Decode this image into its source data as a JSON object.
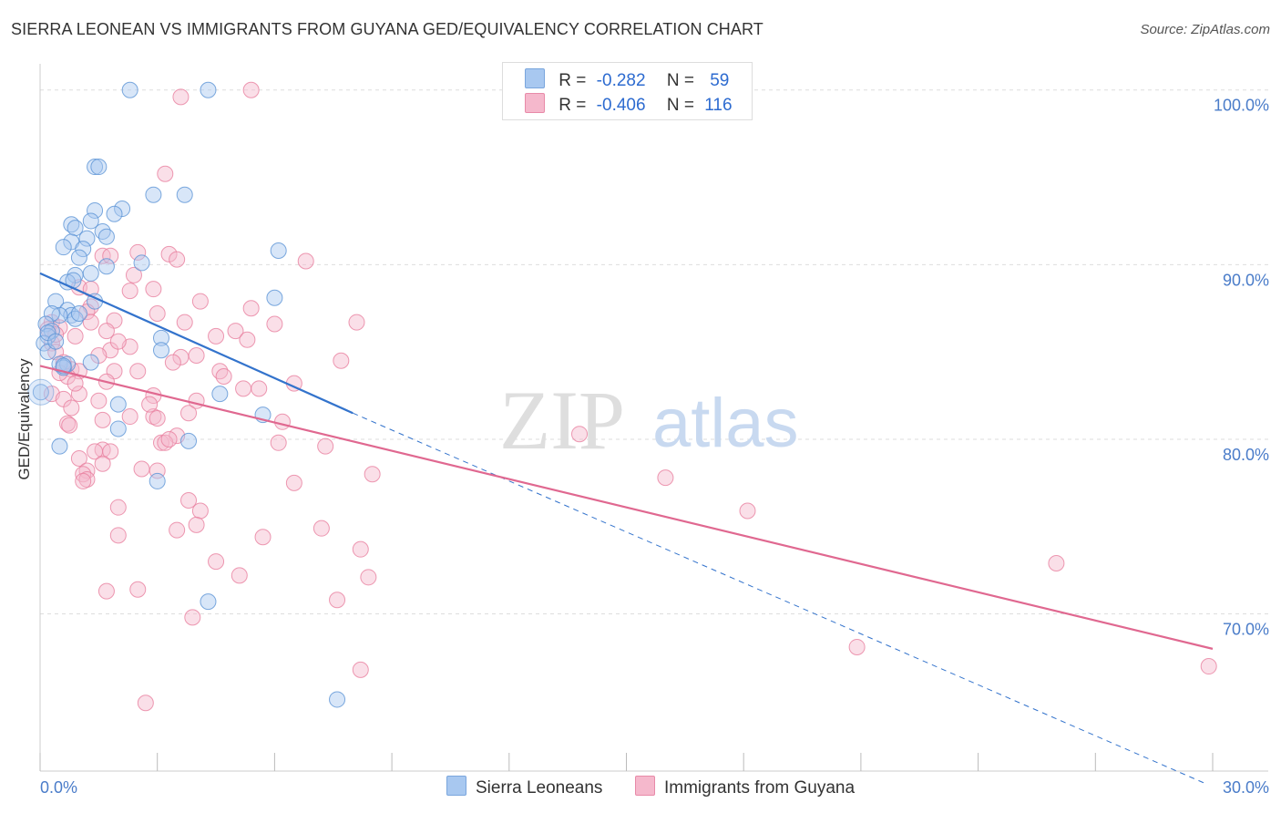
{
  "title": "SIERRA LEONEAN VS IMMIGRANTS FROM GUYANA GED/EQUIVALENCY CORRELATION CHART",
  "source": "Source: ZipAtlas.com",
  "watermark": {
    "zip": "ZIP",
    "atlas": "atlas"
  },
  "legend": {
    "r_label": "R =",
    "n_label": "N =",
    "rows": [
      {
        "r": "-0.282",
        "n": "59",
        "color": "#a8c8f0"
      },
      {
        "r": "-0.406",
        "n": "116",
        "color": "#f5b8cc"
      }
    ]
  },
  "bottom_legend": [
    {
      "label": "Sierra Leoneans",
      "color": "#a8c8f0"
    },
    {
      "label": "Immigrants from Guyana",
      "color": "#f5b8cc"
    }
  ],
  "colors": {
    "blue_point": "#5b93d6",
    "blue_fill": "#a8c8f0",
    "blue_line": "#3373cc",
    "pink_point": "#e8809f",
    "pink_fill": "#f5b8cc",
    "pink_line": "#e06890",
    "axis_text": "#4a7cc9"
  },
  "chart_data": {
    "type": "scatter",
    "title": "SIERRA LEONEAN VS IMMIGRANTS FROM GUYANA GED/EQUIVALENCY CORRELATION CHART",
    "xlabel": "",
    "ylabel": "GED/Equivalency",
    "xlim": [
      0,
      30
    ],
    "ylim": [
      61,
      101.5
    ],
    "x_ticks": [
      "0.0%",
      "30.0%"
    ],
    "y_ticks": [
      {
        "value": 100,
        "label": "100.0%"
      },
      {
        "value": 90,
        "label": "90.0%"
      },
      {
        "value": 80,
        "label": "80.0%"
      },
      {
        "value": 70,
        "label": "70.0%"
      }
    ],
    "grid": true,
    "legend_position": "top-center",
    "series": [
      {
        "name": "Sierra Leoneans",
        "r": -0.282,
        "n": 59,
        "trend": {
          "x0": 0,
          "y0": 89.5,
          "x1": 8.0,
          "y1": 81.5,
          "dashed_to_x": 29.8,
          "dashed_to_y": 60.3
        },
        "points": [
          [
            2.3,
            100
          ],
          [
            4.3,
            100
          ],
          [
            1.4,
            95.6
          ],
          [
            1.5,
            95.6
          ],
          [
            2.9,
            94
          ],
          [
            3.7,
            94
          ],
          [
            2.1,
            93.2
          ],
          [
            1.4,
            93.1
          ],
          [
            1.9,
            92.9
          ],
          [
            1.3,
            92.5
          ],
          [
            0.8,
            92.3
          ],
          [
            0.9,
            92.1
          ],
          [
            1.6,
            91.9
          ],
          [
            1.7,
            91.6
          ],
          [
            1.2,
            91.5
          ],
          [
            0.8,
            91.3
          ],
          [
            0.6,
            91
          ],
          [
            1.1,
            90.9
          ],
          [
            1.0,
            90.4
          ],
          [
            6.1,
            90.8
          ],
          [
            2.6,
            90.1
          ],
          [
            1.7,
            89.9
          ],
          [
            1.3,
            89.5
          ],
          [
            0.9,
            89.4
          ],
          [
            0.7,
            89
          ],
          [
            0.85,
            89.1
          ],
          [
            6.0,
            88.1
          ],
          [
            1.4,
            87.9
          ],
          [
            0.4,
            87.9
          ],
          [
            0.7,
            87.4
          ],
          [
            0.8,
            87.1
          ],
          [
            0.5,
            87.1
          ],
          [
            0.3,
            87.2
          ],
          [
            0.15,
            86.6
          ],
          [
            0.3,
            86.2
          ],
          [
            0.2,
            85.9
          ],
          [
            3.1,
            85.8
          ],
          [
            0.1,
            85.5
          ],
          [
            0.2,
            85
          ],
          [
            3.1,
            85.1
          ],
          [
            1.3,
            84.4
          ],
          [
            0.5,
            84.3
          ],
          [
            0.7,
            84.3
          ],
          [
            0.6,
            84.1
          ],
          [
            0.6,
            84.2
          ],
          [
            4.6,
            82.6
          ],
          [
            2.0,
            82
          ],
          [
            0.02,
            82.7
          ],
          [
            5.7,
            81.4
          ],
          [
            2.0,
            80.6
          ],
          [
            3.8,
            79.9
          ],
          [
            0.5,
            79.6
          ],
          [
            3.0,
            77.6
          ],
          [
            4.3,
            70.7
          ],
          [
            7.6,
            65.1
          ],
          [
            0.9,
            86.9
          ],
          [
            0.2,
            86.1
          ],
          [
            1.0,
            87.2
          ],
          [
            0.4,
            85.6
          ]
        ]
      },
      {
        "name": "Immigrants from Guyana",
        "r": -0.406,
        "n": 116,
        "trend": {
          "x0": 0,
          "y0": 84.2,
          "x1": 30,
          "y1": 68.0
        },
        "points": [
          [
            5.4,
            100
          ],
          [
            3.6,
            99.6
          ],
          [
            3.2,
            95.2
          ],
          [
            1.6,
            90.5
          ],
          [
            2.5,
            90.7
          ],
          [
            1.8,
            90.5
          ],
          [
            3.3,
            90.6
          ],
          [
            3.5,
            90.3
          ],
          [
            6.8,
            90.2
          ],
          [
            2.4,
            89.4
          ],
          [
            1.0,
            88.7
          ],
          [
            1.3,
            88.6
          ],
          [
            2.9,
            88.6
          ],
          [
            2.3,
            88.5
          ],
          [
            4.1,
            87.9
          ],
          [
            1.3,
            87.6
          ],
          [
            1.2,
            87.3
          ],
          [
            5.4,
            87.5
          ],
          [
            3.0,
            87.2
          ],
          [
            1.9,
            86.8
          ],
          [
            1.3,
            86.7
          ],
          [
            3.7,
            86.7
          ],
          [
            6.0,
            86.6
          ],
          [
            8.1,
            86.7
          ],
          [
            0.3,
            86.7
          ],
          [
            1.7,
            86.2
          ],
          [
            0.5,
            86.4
          ],
          [
            0.2,
            86.3
          ],
          [
            4.5,
            85.9
          ],
          [
            5.0,
            86.2
          ],
          [
            0.9,
            85.9
          ],
          [
            5.3,
            85.7
          ],
          [
            0.3,
            85.5
          ],
          [
            2.3,
            85.3
          ],
          [
            0.4,
            85
          ],
          [
            1.8,
            85.1
          ],
          [
            3.6,
            84.7
          ],
          [
            4.0,
            84.8
          ],
          [
            3.4,
            84.4
          ],
          [
            7.7,
            84.5
          ],
          [
            0.8,
            84
          ],
          [
            0.6,
            84.4
          ],
          [
            1.0,
            83.9
          ],
          [
            1.9,
            83.9
          ],
          [
            2.5,
            83.9
          ],
          [
            4.6,
            83.9
          ],
          [
            4.7,
            83.6
          ],
          [
            0.7,
            83.6
          ],
          [
            0.5,
            83.8
          ],
          [
            1.7,
            83.3
          ],
          [
            6.5,
            83.2
          ],
          [
            5.2,
            82.9
          ],
          [
            5.6,
            82.9
          ],
          [
            0.3,
            82.6
          ],
          [
            1.0,
            82.6
          ],
          [
            2.9,
            82.5
          ],
          [
            0.6,
            82.3
          ],
          [
            1.5,
            82.2
          ],
          [
            4.0,
            82.2
          ],
          [
            0.8,
            81.8
          ],
          [
            3.8,
            81.5
          ],
          [
            2.3,
            81.3
          ],
          [
            2.9,
            81.3
          ],
          [
            1.6,
            81.1
          ],
          [
            3.0,
            81.2
          ],
          [
            6.2,
            81
          ],
          [
            0.7,
            80.9
          ],
          [
            0.75,
            80.8
          ],
          [
            13.8,
            80.3
          ],
          [
            3.5,
            80.2
          ],
          [
            3.1,
            79.8
          ],
          [
            3.2,
            79.8
          ],
          [
            6.1,
            79.8
          ],
          [
            7.3,
            79.6
          ],
          [
            1.6,
            79.4
          ],
          [
            1.4,
            79.3
          ],
          [
            1.8,
            79.3
          ],
          [
            1.0,
            78.9
          ],
          [
            1.6,
            78.6
          ],
          [
            2.6,
            78.3
          ],
          [
            3.0,
            78.2
          ],
          [
            1.2,
            78.2
          ],
          [
            1.1,
            78
          ],
          [
            8.5,
            78
          ],
          [
            1.2,
            77.7
          ],
          [
            1.1,
            77.6
          ],
          [
            6.5,
            77.5
          ],
          [
            16.0,
            77.8
          ],
          [
            2.0,
            76.1
          ],
          [
            3.8,
            76.5
          ],
          [
            4.1,
            75.9
          ],
          [
            18.1,
            75.9
          ],
          [
            7.2,
            74.9
          ],
          [
            3.5,
            74.8
          ],
          [
            4.0,
            75.1
          ],
          [
            5.7,
            74.4
          ],
          [
            2.0,
            74.5
          ],
          [
            8.2,
            73.7
          ],
          [
            4.5,
            73
          ],
          [
            26.0,
            72.9
          ],
          [
            5.1,
            72.2
          ],
          [
            8.4,
            72.1
          ],
          [
            2.5,
            71.4
          ],
          [
            1.7,
            71.3
          ],
          [
            7.6,
            70.8
          ],
          [
            3.9,
            69.8
          ],
          [
            20.9,
            68.1
          ],
          [
            8.2,
            66.8
          ],
          [
            29.9,
            67
          ],
          [
            2.7,
            64.9
          ],
          [
            0.4,
            86.0
          ],
          [
            1.5,
            84.8
          ],
          [
            2.0,
            85.6
          ],
          [
            0.9,
            83.2
          ],
          [
            3.3,
            80.0
          ],
          [
            2.8,
            82.0
          ]
        ]
      }
    ]
  }
}
